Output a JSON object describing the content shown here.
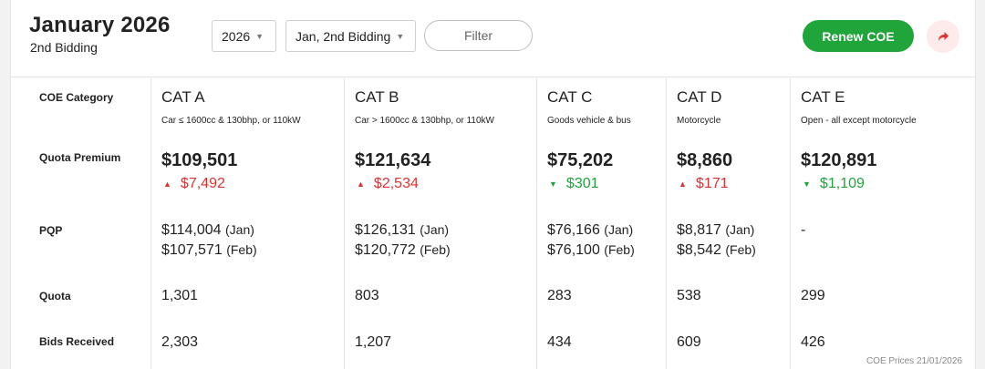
{
  "header": {
    "title": "January 2026",
    "subtitle": "2nd Bidding",
    "year_select": "2026",
    "bidding_select": "Jan, 2nd Bidding",
    "filter_label": "Filter",
    "renew_label": "Renew COE",
    "share_icon": "share-arrow-icon"
  },
  "row_labels": {
    "category": "COE Category",
    "premium": "Quota Premium",
    "pqp": "PQP",
    "quota": "Quota",
    "bids": "Bids Received"
  },
  "categories": [
    {
      "name": "CAT A",
      "desc": "Car ≤ 1600cc & 130bhp, or 110kW",
      "premium": "$109,501",
      "change": "$7,492",
      "direction": "up",
      "pqp1": "$114,004",
      "pqp1_month": "(Jan)",
      "pqp2": "$107,571",
      "pqp2_month": "(Feb)",
      "quota": "1,301",
      "bids": "2,303"
    },
    {
      "name": "CAT B",
      "desc": "Car > 1600cc & 130bhp, or 110kW",
      "premium": "$121,634",
      "change": "$2,534",
      "direction": "up",
      "pqp1": "$126,131",
      "pqp1_month": "(Jan)",
      "pqp2": "$120,772",
      "pqp2_month": "(Feb)",
      "quota": "803",
      "bids": "1,207"
    },
    {
      "name": "CAT C",
      "desc": "Goods vehicle & bus",
      "premium": "$75,202",
      "change": "$301",
      "direction": "down",
      "pqp1": "$76,166",
      "pqp1_month": "(Jan)",
      "pqp2": "$76,100",
      "pqp2_month": "(Feb)",
      "quota": "283",
      "bids": "434"
    },
    {
      "name": "CAT D",
      "desc": "Motorcycle",
      "premium": "$8,860",
      "change": "$171",
      "direction": "up",
      "pqp1": "$8,817",
      "pqp1_month": "(Jan)",
      "pqp2": "$8,542",
      "pqp2_month": "(Feb)",
      "quota": "538",
      "bids": "609"
    },
    {
      "name": "CAT E",
      "desc": "Open - all except motorcycle",
      "premium": "$120,891",
      "change": "$1,109",
      "direction": "down",
      "pqp1": "-",
      "pqp1_month": "",
      "pqp2": "",
      "pqp2_month": "",
      "quota": "299",
      "bids": "426"
    }
  ],
  "colors": {
    "up": "#e03131",
    "down": "#1fa53a",
    "accent": "#1fa53a"
  },
  "footer": "COE Prices 21/01/2026"
}
